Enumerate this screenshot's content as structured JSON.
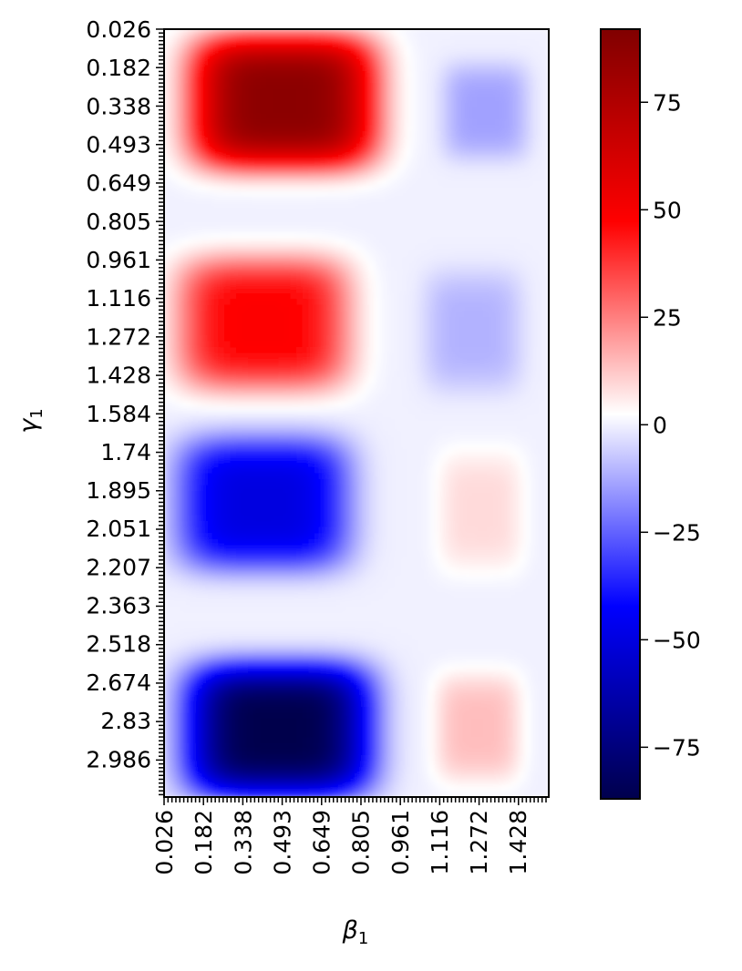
{
  "chart_data": {
    "type": "heatmap",
    "title": "",
    "xlabel": "β",
    "xlabel_sub": "1",
    "ylabel": "γ",
    "ylabel_sub": "1",
    "x_ticks": [
      "0.026",
      "0.182",
      "0.338",
      "0.493",
      "0.649",
      "0.805",
      "0.961",
      "1.116",
      "1.272",
      "1.428"
    ],
    "y_ticks": [
      "0.026",
      "0.182",
      "0.338",
      "0.493",
      "0.649",
      "0.805",
      "0.961",
      "1.116",
      "1.272",
      "1.428",
      "1.584",
      "1.74",
      "1.895",
      "2.051",
      "2.207",
      "2.363",
      "2.518",
      "2.674",
      "2.83",
      "2.986"
    ],
    "x_range": [
      0.026,
      1.55
    ],
    "y_range": [
      0.026,
      3.14
    ],
    "colormap": "seismic",
    "colorbar": {
      "min": -87,
      "max": 92,
      "ticks": [
        "75",
        "50",
        "25",
        "0",
        "−25",
        "−50",
        "−75"
      ],
      "tick_values": [
        75,
        50,
        25,
        0,
        -25,
        -50,
        -75
      ],
      "colors": [
        "#00004c",
        "#0000ff",
        "#ffffff",
        "#ff0000",
        "#800000"
      ]
    },
    "blobs": [
      {
        "beta": 0.5,
        "gamma": 0.32,
        "beta_spread": 0.3,
        "gamma_spread": 0.22,
        "value": 88
      },
      {
        "beta": 1.3,
        "gamma": 0.36,
        "beta_spread": 0.14,
        "gamma_spread": 0.16,
        "value": -14
      },
      {
        "beta": 0.42,
        "gamma": 1.22,
        "beta_spread": 0.28,
        "gamma_spread": 0.22,
        "value": 48
      },
      {
        "beta": 1.25,
        "gamma": 1.25,
        "beta_spread": 0.16,
        "gamma_spread": 0.2,
        "value": -11
      },
      {
        "beta": 0.42,
        "gamma": 1.95,
        "beta_spread": 0.28,
        "gamma_spread": 0.22,
        "value": -50
      },
      {
        "beta": 1.28,
        "gamma": 1.98,
        "beta_spread": 0.14,
        "gamma_spread": 0.2,
        "value": 9
      },
      {
        "beta": 0.48,
        "gamma": 2.87,
        "beta_spread": 0.3,
        "gamma_spread": 0.22,
        "value": -87
      },
      {
        "beta": 1.27,
        "gamma": 2.86,
        "beta_spread": 0.14,
        "gamma_spread": 0.18,
        "value": 14
      }
    ]
  }
}
